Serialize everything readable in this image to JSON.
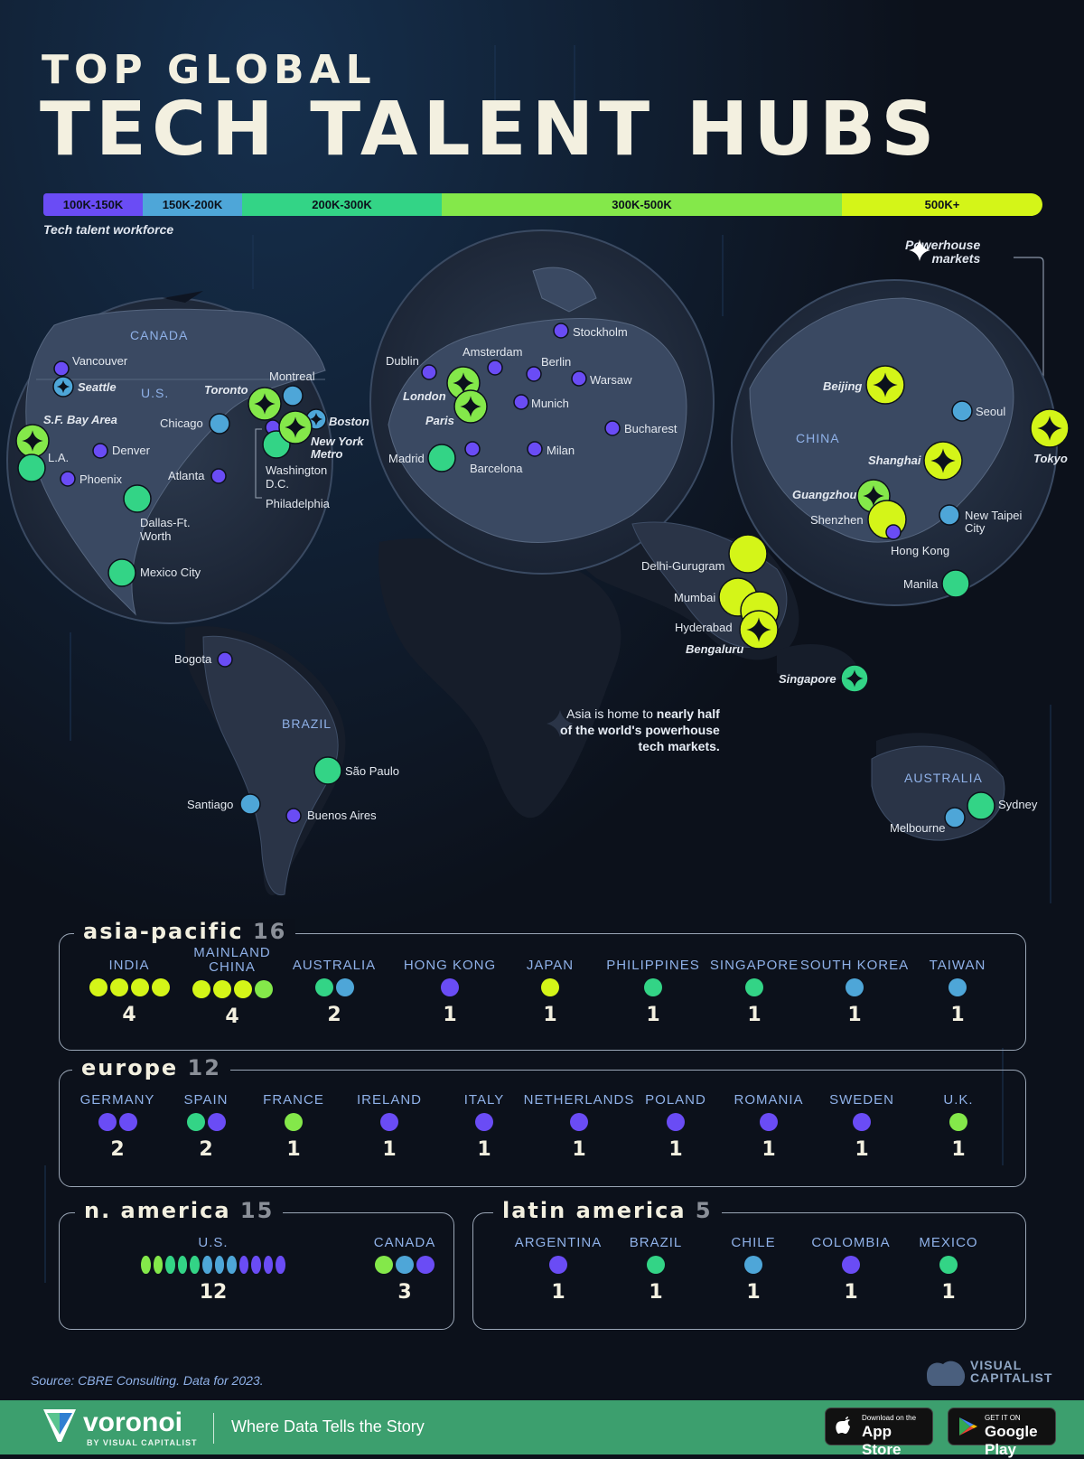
{
  "title": {
    "line1": "TOP GLOBAL",
    "line2": "TECH TALENT HUBS"
  },
  "legend": {
    "caption": "Tech talent workforce",
    "bins": [
      {
        "label": "100K-150K",
        "color": "#6a4cf5"
      },
      {
        "label": "150K-200K",
        "color": "#4ea6d8"
      },
      {
        "label": "200K-300K",
        "color": "#33d486"
      },
      {
        "label": "300K-500K",
        "color": "#84e84a"
      },
      {
        "label": "500K+",
        "color": "#d4f518"
      }
    ],
    "powerhouse_line1": "Powerhouse",
    "powerhouse_line2": "markets"
  },
  "map": {
    "regions": {
      "canada": "CANADA",
      "us": "U.S.",
      "china": "CHINA",
      "brazil": "BRAZIL",
      "australia": "AUSTRALIA"
    },
    "annotation": {
      "l1a": "Asia is home to ",
      "l1b": "nearly half",
      "l2": "of the world's powerhouse",
      "l3": "tech markets."
    },
    "cities": {
      "vancouver": "Vancouver",
      "seattle": "Seattle",
      "sf": "S.F. Bay Area",
      "la": "L.A.",
      "denver": "Denver",
      "phoenix": "Phoenix",
      "dallas1": "Dallas-Ft.",
      "dallas2": "Worth",
      "mexico": "Mexico City",
      "chicago": "Chicago",
      "toronto": "Toronto",
      "montreal": "Montreal",
      "boston": "Boston",
      "ny1": "New York",
      "ny2": "Metro",
      "dc1": "Washington",
      "dc2": "D.C.",
      "philadelphia": "Philadelphia",
      "atlanta": "Atlanta",
      "dublin": "Dublin",
      "amsterdam": "Amsterdam",
      "berlin": "Berlin",
      "stockholm": "Stockholm",
      "warsaw": "Warsaw",
      "london": "London",
      "paris": "Paris",
      "munich": "Munich",
      "bucharest": "Bucharest",
      "madrid": "Madrid",
      "barcelona": "Barcelona",
      "milan": "Milan",
      "beijing": "Beijing",
      "seoul": "Seoul",
      "tokyo": "Tokyo",
      "shanghai": "Shanghai",
      "guangzhou": "Guangzhou",
      "shenzhen": "Shenzhen",
      "newtaipei1": "New Taipei",
      "newtaipei2": "City",
      "hongkong": "Hong Kong",
      "manila": "Manila",
      "delhi": "Delhi-Gurugram",
      "mumbai": "Mumbai",
      "hyderabad": "Hyderabad",
      "bengaluru": "Bengaluru",
      "singapore": "Singapore",
      "bogota": "Bogota",
      "saopaulo": "São Paulo",
      "santiago": "Santiago",
      "buenosaires": "Buenos Aires",
      "sydney": "Sydney",
      "melbourne": "Melbourne"
    }
  },
  "panels": {
    "asia": {
      "name": "asia-pacific",
      "count": "16",
      "countries": [
        {
          "name": "INDIA",
          "dots": [
            "#d4f518",
            "#d4f518",
            "#d4f518",
            "#d4f518"
          ],
          "count": "4"
        },
        {
          "name": "MAINLAND CHINA",
          "dots": [
            "#d4f518",
            "#d4f518",
            "#d4f518",
            "#84e84a"
          ],
          "count": "4"
        },
        {
          "name": "AUSTRALIA",
          "dots": [
            "#33d486",
            "#4ea6d8"
          ],
          "count": "2"
        },
        {
          "name": "HONG KONG",
          "dots": [
            "#6a4cf5"
          ],
          "count": "1"
        },
        {
          "name": "JAPAN",
          "dots": [
            "#d4f518"
          ],
          "count": "1"
        },
        {
          "name": "PHILIPPINES",
          "dots": [
            "#33d486"
          ],
          "count": "1"
        },
        {
          "name": "SINGAPORE",
          "dots": [
            "#33d486"
          ],
          "count": "1"
        },
        {
          "name": "SOUTH KOREA",
          "dots": [
            "#4ea6d8"
          ],
          "count": "1"
        },
        {
          "name": "TAIWAN",
          "dots": [
            "#4ea6d8"
          ],
          "count": "1"
        }
      ]
    },
    "europe": {
      "name": "europe",
      "count": "12",
      "countries": [
        {
          "name": "GERMANY",
          "dots": [
            "#6a4cf5",
            "#6a4cf5"
          ],
          "count": "2"
        },
        {
          "name": "SPAIN",
          "dots": [
            "#33d486",
            "#6a4cf5"
          ],
          "count": "2"
        },
        {
          "name": "FRANCE",
          "dots": [
            "#84e84a"
          ],
          "count": "1"
        },
        {
          "name": "IRELAND",
          "dots": [
            "#6a4cf5"
          ],
          "count": "1"
        },
        {
          "name": "ITALY",
          "dots": [
            "#6a4cf5"
          ],
          "count": "1"
        },
        {
          "name": "NETHERLANDS",
          "dots": [
            "#6a4cf5"
          ],
          "count": "1"
        },
        {
          "name": "POLAND",
          "dots": [
            "#6a4cf5"
          ],
          "count": "1"
        },
        {
          "name": "ROMANIA",
          "dots": [
            "#6a4cf5"
          ],
          "count": "1"
        },
        {
          "name": "SWEDEN",
          "dots": [
            "#6a4cf5"
          ],
          "count": "1"
        },
        {
          "name": "U.K.",
          "dots": [
            "#84e84a"
          ],
          "count": "1"
        }
      ]
    },
    "namerica": {
      "name": "n. america",
      "count": "15",
      "countries": [
        {
          "name": "U.S.",
          "dots": [
            "#84e84a",
            "#84e84a",
            "#33d486",
            "#33d486",
            "#33d486",
            "#4ea6d8",
            "#4ea6d8",
            "#4ea6d8",
            "#6a4cf5",
            "#6a4cf5",
            "#6a4cf5",
            "#6a4cf5"
          ],
          "count": "12"
        },
        {
          "name": "CANADA",
          "dots": [
            "#84e84a",
            "#4ea6d8",
            "#6a4cf5"
          ],
          "count": "3"
        }
      ]
    },
    "latam": {
      "name": "latin america",
      "count": "5",
      "countries": [
        {
          "name": "ARGENTINA",
          "dots": [
            "#6a4cf5"
          ],
          "count": "1"
        },
        {
          "name": "BRAZIL",
          "dots": [
            "#33d486"
          ],
          "count": "1"
        },
        {
          "name": "CHILE",
          "dots": [
            "#4ea6d8"
          ],
          "count": "1"
        },
        {
          "name": "COLOMBIA",
          "dots": [
            "#6a4cf5"
          ],
          "count": "1"
        },
        {
          "name": "MEXICO",
          "dots": [
            "#33d486"
          ],
          "count": "1"
        }
      ]
    }
  },
  "source": "Source: CBRE Consulting. Data for 2023.",
  "vc_logo": {
    "line1": "VISUAL",
    "line2": "CAPITALIST"
  },
  "footer": {
    "brand": "voronoi",
    "by": "BY VISUAL CAPITALIST",
    "tagline": "Where Data Tells the Story",
    "appstore_small": "Download on the",
    "appstore_big": "App Store",
    "gplay_small": "GET IT ON",
    "gplay_big": "Google Play"
  }
}
